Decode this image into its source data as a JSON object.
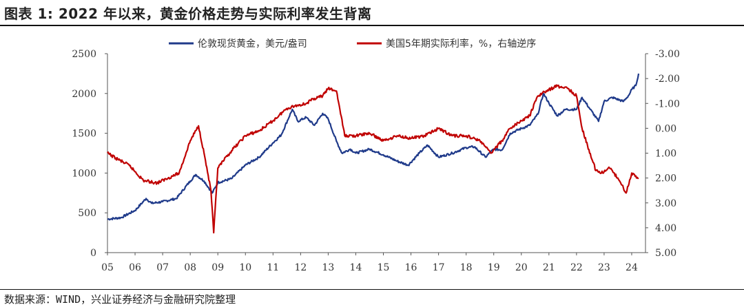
{
  "title": "图表 1: 2022 年以来，黄金价格走势与实际利率发生背离",
  "source": "数据来源：WIND，兴业证券经济与金融研究院整理",
  "colors": {
    "gold": "#1f3a8a",
    "rate": "#c00000"
  },
  "chart_data": {
    "type": "line",
    "x_ticks": [
      "05",
      "06",
      "07",
      "08",
      "09",
      "10",
      "11",
      "12",
      "13",
      "14",
      "15",
      "16",
      "17",
      "18",
      "19",
      "20",
      "21",
      "22",
      "23",
      "24"
    ],
    "left_axis": {
      "ylim": [
        0,
        2500
      ],
      "ticks": [
        "0",
        "500",
        "1000",
        "1500",
        "2000",
        "2500"
      ]
    },
    "right_axis": {
      "ylim": [
        5.0,
        -3.0
      ],
      "reversed": true,
      "ticks": [
        "-3.00",
        "-2.00",
        "-1.00",
        "0.00",
        "1.00",
        "2.00",
        "3.00",
        "4.00",
        "5.00"
      ]
    },
    "legend_position": "top",
    "series": [
      {
        "name": "伦敦现货黄金，美元/盎司",
        "axis": "left",
        "x": [
          2005.0,
          2005.5,
          2006.0,
          2006.4,
          2006.6,
          2007.0,
          2007.5,
          2008.0,
          2008.2,
          2008.5,
          2008.8,
          2009.0,
          2009.5,
          2010.0,
          2010.5,
          2011.0,
          2011.3,
          2011.7,
          2011.9,
          2012.2,
          2012.5,
          2012.8,
          2013.0,
          2013.3,
          2013.5,
          2013.8,
          2014.0,
          2014.5,
          2015.0,
          2015.5,
          2015.9,
          2016.3,
          2016.6,
          2017.0,
          2017.5,
          2018.0,
          2018.3,
          2018.7,
          2019.0,
          2019.3,
          2019.6,
          2020.0,
          2020.3,
          2020.6,
          2020.8,
          2021.0,
          2021.3,
          2021.6,
          2022.0,
          2022.2,
          2022.5,
          2022.8,
          2023.0,
          2023.3,
          2023.7,
          2023.9,
          2024.0,
          2024.15,
          2024.25
        ],
        "y": [
          420,
          440,
          530,
          680,
          620,
          640,
          680,
          900,
          980,
          900,
          750,
          880,
          930,
          1100,
          1200,
          1380,
          1480,
          1800,
          1650,
          1700,
          1600,
          1750,
          1680,
          1400,
          1250,
          1300,
          1250,
          1300,
          1230,
          1150,
          1100,
          1250,
          1350,
          1200,
          1250,
          1320,
          1330,
          1200,
          1300,
          1290,
          1500,
          1560,
          1600,
          1740,
          2000,
          1880,
          1720,
          1800,
          1800,
          1950,
          1800,
          1650,
          1900,
          1950,
          1900,
          1980,
          2050,
          2100,
          2250
        ]
      },
      {
        "name": "美国5年期实际利率，%，右轴逆序",
        "axis": "right",
        "x": [
          2005.0,
          2005.3,
          2005.8,
          2006.3,
          2006.8,
          2007.2,
          2007.6,
          2008.0,
          2008.3,
          2008.5,
          2008.75,
          2008.85,
          2009.0,
          2009.5,
          2010.0,
          2010.5,
          2011.0,
          2011.5,
          2011.8,
          2012.2,
          2012.5,
          2012.8,
          2013.0,
          2013.3,
          2013.6,
          2014.0,
          2014.5,
          2015.0,
          2015.5,
          2016.0,
          2016.5,
          2017.0,
          2017.5,
          2018.0,
          2018.5,
          2018.9,
          2019.3,
          2019.6,
          2020.0,
          2020.3,
          2020.6,
          2020.9,
          2021.3,
          2021.7,
          2022.0,
          2022.2,
          2022.4,
          2022.7,
          2022.9,
          2023.2,
          2023.5,
          2023.8,
          2024.0,
          2024.25
        ],
        "y": [
          1.0,
          1.2,
          1.5,
          2.1,
          2.2,
          2.0,
          1.8,
          0.5,
          -0.1,
          1.0,
          2.5,
          4.2,
          1.6,
          0.9,
          0.3,
          0.1,
          -0.3,
          -0.8,
          -0.9,
          -1.0,
          -1.2,
          -1.3,
          -1.6,
          -1.5,
          0.3,
          0.3,
          0.2,
          0.5,
          0.3,
          0.4,
          0.3,
          0.0,
          0.3,
          0.3,
          0.5,
          1.0,
          0.5,
          0.0,
          -0.3,
          -0.5,
          -1.3,
          -1.5,
          -1.7,
          -1.6,
          -1.3,
          0.0,
          0.7,
          1.7,
          1.8,
          1.6,
          2.0,
          2.6,
          1.8,
          2.0
        ]
      }
    ]
  }
}
